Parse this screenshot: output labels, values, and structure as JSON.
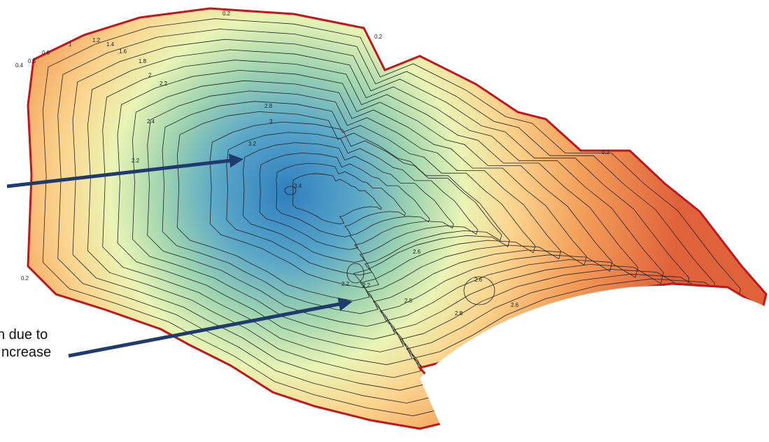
{
  "annotations": [
    "n due to",
    "ncrease"
  ],
  "contour_labels": [
    "0.2",
    "0.2",
    "0.2",
    "0.4",
    "0.6",
    "0.8",
    "1",
    "1.2",
    "1.4",
    "1.6",
    "1.8",
    "2",
    "2.2",
    "2.4",
    "2.2",
    "2.8",
    "3",
    "3.2",
    "3.4",
    "2.6",
    "2.6",
    "2.6",
    "2.8",
    "2.2",
    "2.2",
    "2.8",
    "0.2"
  ]
}
